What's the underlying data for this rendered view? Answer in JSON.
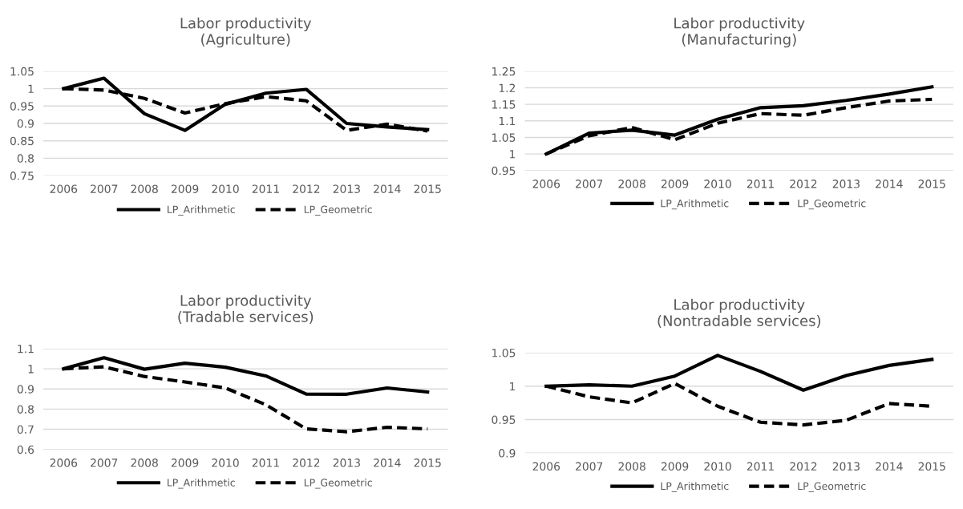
{
  "chart_data": [
    {
      "type": "line",
      "title": "Labor productivity\n(Agriculture)",
      "categories": [
        "2006",
        "2007",
        "2008",
        "2009",
        "2010",
        "2011",
        "2012",
        "2013",
        "2014",
        "2015"
      ],
      "series": [
        {
          "name": "LP_Arithmetic",
          "color": "#000000",
          "line_style": "solid",
          "values": [
            1,
            1.03,
            0.928,
            0.88,
            0.955,
            0.987,
            0.998,
            0.9,
            0.89,
            0.882
          ]
        },
        {
          "name": "LP_Geometric",
          "color": "#000000",
          "line_style": "dashed",
          "values": [
            1,
            0.996,
            0.972,
            0.93,
            0.957,
            0.977,
            0.965,
            0.88,
            0.898,
            0.878
          ]
        }
      ],
      "ylim": [
        0.75,
        1.05
      ],
      "yticks": [
        0.75,
        0.8,
        0.85,
        0.9,
        0.95,
        1,
        1.05
      ],
      "grid": "y",
      "legend": "bottom"
    },
    {
      "type": "line",
      "title": "Labor productivity\n(Manufacturing)",
      "categories": [
        "2006",
        "2007",
        "2008",
        "2009",
        "2010",
        "2011",
        "2012",
        "2013",
        "2014",
        "2015"
      ],
      "series": [
        {
          "name": "LP_Arithmetic",
          "color": "#000000",
          "line_style": "solid",
          "values": [
            1,
            1.063,
            1.072,
            1.057,
            1.105,
            1.14,
            1.146,
            1.162,
            1.181,
            1.203
          ]
        },
        {
          "name": "LP_Geometric",
          "color": "#000000",
          "line_style": "dashed",
          "values": [
            1,
            1.055,
            1.08,
            1.043,
            1.093,
            1.122,
            1.117,
            1.14,
            1.16,
            1.165
          ]
        }
      ],
      "ylim": [
        0.95,
        1.25
      ],
      "yticks": [
        0.95,
        1,
        1.05,
        1.1,
        1.15,
        1.2,
        1.25
      ],
      "grid": "y",
      "legend": "bottom"
    },
    {
      "type": "line",
      "title": "Labor productivity\n(Tradable services)",
      "categories": [
        "2006",
        "2007",
        "2008",
        "2009",
        "2010",
        "2011",
        "2012",
        "2013",
        "2014",
        "2015"
      ],
      "series": [
        {
          "name": "LP_Arithmetic",
          "color": "#000000",
          "line_style": "solid",
          "values": [
            1,
            1.055,
            0.998,
            1.028,
            1.008,
            0.965,
            0.875,
            0.874,
            0.905,
            0.885
          ]
        },
        {
          "name": "LP_Geometric",
          "color": "#000000",
          "line_style": "dashed",
          "values": [
            1,
            1.01,
            0.962,
            0.935,
            0.905,
            0.822,
            0.702,
            0.688,
            0.71,
            0.702
          ]
        }
      ],
      "ylim": [
        0.6,
        1.1
      ],
      "yticks": [
        0.6,
        0.7,
        0.8,
        0.9,
        1,
        1.1
      ],
      "grid": "y",
      "legend": "bottom"
    },
    {
      "type": "line",
      "title": "Labor productivity\n(Nontradable services)",
      "categories": [
        "2006",
        "2007",
        "2008",
        "2009",
        "2010",
        "2011",
        "2012",
        "2013",
        "2014",
        "2015"
      ],
      "series": [
        {
          "name": "LP_Arithmetic",
          "color": "#000000",
          "line_style": "solid",
          "values": [
            1,
            1.002,
            1.0,
            1.015,
            1.046,
            1.022,
            0.994,
            1.016,
            1.031,
            1.04
          ]
        },
        {
          "name": "LP_Geometric",
          "color": "#000000",
          "line_style": "dashed",
          "values": [
            1,
            0.984,
            0.975,
            1.004,
            0.97,
            0.946,
            0.942,
            0.949,
            0.974,
            0.97
          ]
        }
      ],
      "ylim": [
        0.9,
        1.05
      ],
      "yticks": [
        0.9,
        0.95,
        1,
        1.05
      ],
      "grid": "y",
      "legend": "bottom"
    }
  ]
}
